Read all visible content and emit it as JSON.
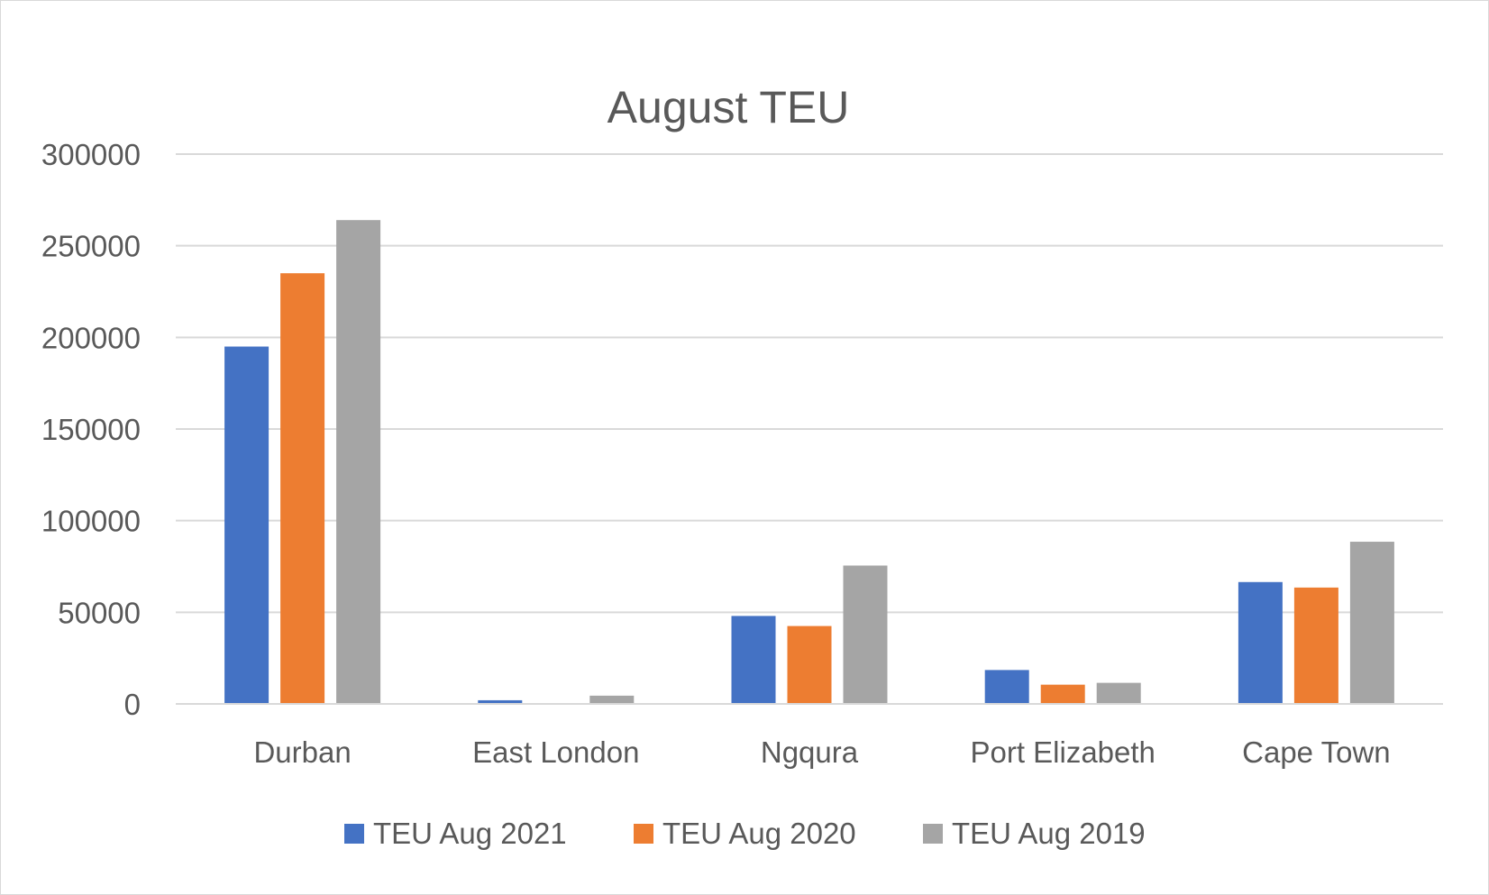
{
  "chart_data": {
    "type": "bar",
    "title": "August TEU",
    "xlabel": "",
    "ylabel": "",
    "categories": [
      "Durban",
      "East London",
      "Ngqura",
      "Port Elizabeth",
      "Cape Town"
    ],
    "series": [
      {
        "name": "TEU Aug 2021",
        "color": "#4472c4",
        "values": [
          195000,
          2000,
          48000,
          18500,
          66500
        ]
      },
      {
        "name": "TEU Aug 2020",
        "color": "#ed7d31",
        "values": [
          235000,
          0,
          42500,
          10500,
          63500
        ]
      },
      {
        "name": "TEU Aug 2019",
        "color": "#a5a5a5",
        "values": [
          264000,
          4500,
          75500,
          11500,
          88500
        ]
      }
    ],
    "ylim": [
      0,
      300000
    ],
    "yticks": [
      "0",
      "50000",
      "100000",
      "150000",
      "200000",
      "250000",
      "300000"
    ],
    "grid": true,
    "legend_position": "bottom"
  }
}
